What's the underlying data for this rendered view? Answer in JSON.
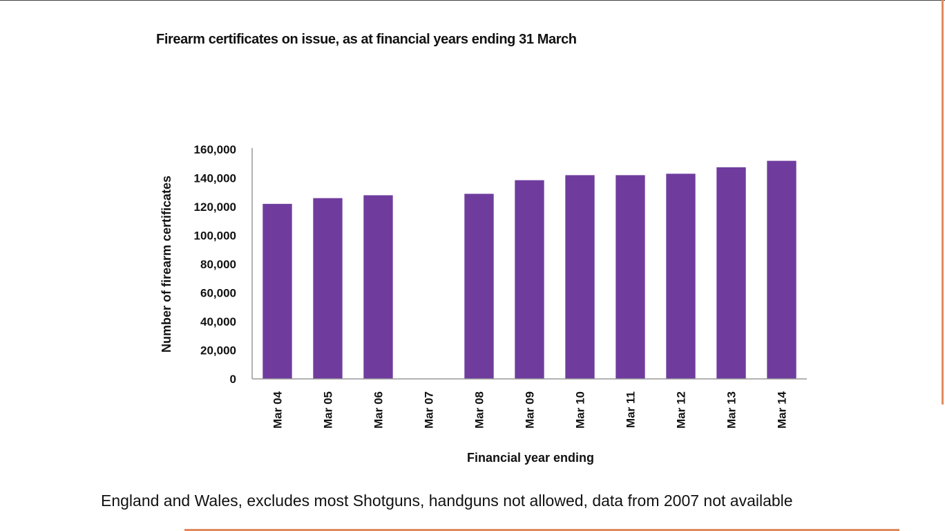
{
  "caption": "England and Wales, excludes most Shotguns, handguns not allowed, data from 2007 not available",
  "colors": {
    "bar": "#6f3c9e",
    "accent": "#e08a5c",
    "axis": "#999999"
  },
  "chart_data": {
    "type": "bar",
    "title": "Firearm certificates on issue, as at financial years ending 31 March",
    "xlabel": "Financial year ending",
    "ylabel": "Number of firearm certificates",
    "categories": [
      "Mar 04",
      "Mar 05",
      "Mar 06",
      "Mar 07",
      "Mar 08",
      "Mar 09",
      "Mar 10",
      "Mar 11",
      "Mar 12",
      "Mar 13",
      "Mar 14"
    ],
    "values": [
      122000,
      126000,
      128000,
      null,
      129000,
      138500,
      142000,
      142000,
      143000,
      147500,
      152000
    ],
    "ylim": [
      0,
      160000
    ],
    "yticks": [
      0,
      20000,
      40000,
      60000,
      80000,
      100000,
      120000,
      140000,
      160000
    ],
    "ytick_labels": [
      "0",
      "20,000",
      "40,000",
      "60,000",
      "80,000",
      "100,000",
      "120,000",
      "140,000",
      "160,000"
    ],
    "grid": false,
    "legend": "none"
  }
}
